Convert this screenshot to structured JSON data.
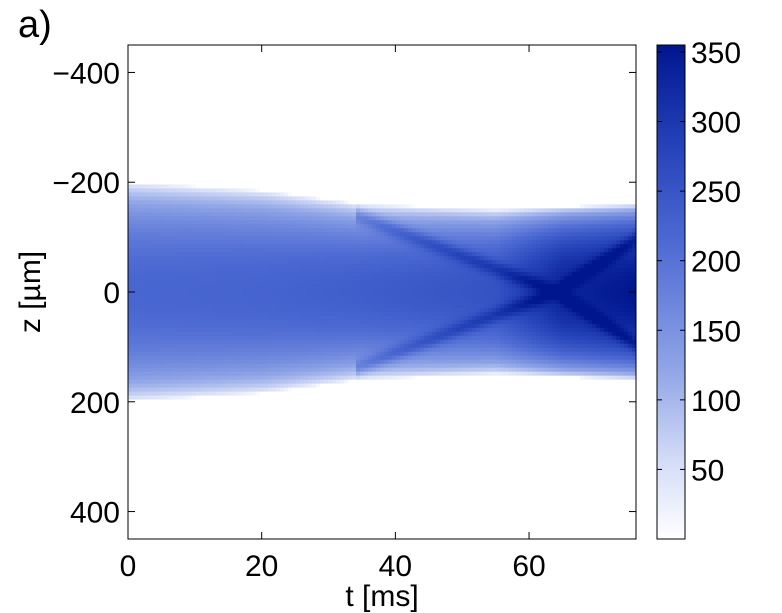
{
  "panel_label": "a)",
  "chart_data": {
    "type": "heatmap",
    "title": "",
    "xlabel": "t [ms]",
    "ylabel": "z [µm]",
    "xlim": [
      0,
      76
    ],
    "ylim": [
      450,
      -450
    ],
    "y_axis_inverted": true,
    "x_ticks": [
      0,
      20,
      40,
      60
    ],
    "x_tick_labels": [
      "0",
      "20",
      "40",
      "60"
    ],
    "y_ticks": [
      -400,
      -200,
      0,
      200,
      400
    ],
    "y_tick_labels": [
      "−400",
      "−200",
      "0",
      "200",
      "400"
    ],
    "colorbar": {
      "range": [
        0,
        355
      ],
      "ticks": [
        50,
        100,
        150,
        200,
        250,
        300,
        350
      ],
      "tick_labels": [
        "50",
        "100",
        "150",
        "200",
        "250",
        "300",
        "350"
      ],
      "color_low": "#ffffff",
      "color_high": "#00168f"
    },
    "field_description_points": {
      "t": [
        0,
        20,
        35,
        55,
        65,
        76
      ],
      "envelope_half_width_um": [
        200,
        185,
        160,
        150,
        155,
        160
      ],
      "center_density": [
        220,
        225,
        235,
        255,
        330,
        355
      ]
    },
    "crossing_fronts": {
      "start_t": 34,
      "start_z_um": [
        -140,
        140
      ],
      "merge_t": 64,
      "merge_z_um": 0
    },
    "grid": false,
    "legend": "colorbar-right"
  }
}
